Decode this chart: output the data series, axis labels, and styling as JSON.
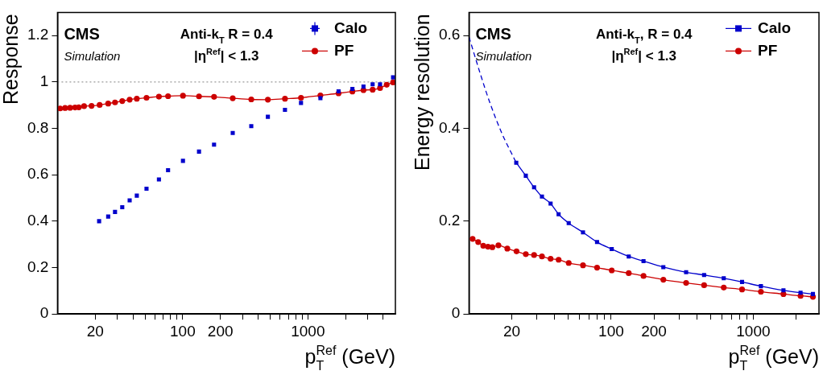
{
  "chart_data": [
    {
      "type": "scatter",
      "ylabel": "Response",
      "xlabel": "p$_{T}$$^{Ref}$ (GeV)",
      "log": "x",
      "grid": false,
      "legend": "top right",
      "xlim": [
        10,
        5000
      ],
      "xticks": [
        20,
        {
          "value": 30,
          "label": null
        },
        {
          "value": 40,
          "label": null
        },
        {
          "value": 50,
          "label": null
        },
        {
          "value": 60,
          "label": null
        },
        {
          "value": 70,
          "label": null
        },
        {
          "value": 80,
          "label": null
        },
        {
          "value": 90,
          "label": null
        },
        100,
        200,
        {
          "value": 300,
          "label": null
        },
        {
          "value": 400,
          "label": null
        },
        {
          "value": 500,
          "label": null
        },
        {
          "value": 600,
          "label": null
        },
        {
          "value": 700,
          "label": null
        },
        {
          "value": 800,
          "label": null
        },
        {
          "value": 900,
          "label": null
        },
        1000,
        {
          "value": 2000,
          "label": null
        },
        {
          "value": 3000,
          "label": null
        },
        {
          "value": 4000,
          "label": null
        }
      ],
      "ylim": [
        0,
        1.3
      ],
      "yticks": [
        0,
        0.2,
        0.4,
        0.6,
        0.8,
        1,
        1.2
      ],
      "annotations": [
        "CMS",
        "Simulation",
        "Anti-k$_{T}$ R = 0.4",
        "|η$^{Ref}$| < 1.3"
      ],
      "ref_lines": [
        {
          "axis": "y",
          "value": 1,
          "color": "#808080",
          "line_style": "dotted"
        }
      ],
      "series": [
        {
          "name": "Calo",
          "marker": "square",
          "color": "#0000cc",
          "x": [
            21.5,
            25.4,
            28.8,
            32.9,
            37.7,
            43,
            51.4,
            64.6,
            76.4,
            100.5,
            135,
            178,
            251,
            353,
            479,
            656,
            881,
            1259,
            1758,
            2268,
            2780,
            3290,
            3770,
            4790
          ],
          "values": [
            0.4,
            0.42,
            0.44,
            0.46,
            0.49,
            0.51,
            0.54,
            0.58,
            0.62,
            0.66,
            0.7,
            0.73,
            0.78,
            0.81,
            0.85,
            0.88,
            0.91,
            0.93,
            0.96,
            0.97,
            0.98,
            0.99,
            0.99,
            1.02
          ]
        },
        {
          "name": "PF",
          "type": "line",
          "marker": "circle",
          "color": "#cc0000",
          "x": [
            10.5,
            11.5,
            12.6,
            13.8,
            14.8,
            16.3,
            18.7,
            21.7,
            25.4,
            28.8,
            32.9,
            37.7,
            43,
            51.4,
            64.6,
            76.4,
            100.5,
            135,
            178,
            251,
            353,
            479,
            656,
            881,
            1259,
            1758,
            2268,
            2780,
            3290,
            3770,
            4260,
            4790
          ],
          "values": [
            0.886,
            0.888,
            0.889,
            0.89,
            0.891,
            0.896,
            0.897,
            0.901,
            0.907,
            0.912,
            0.918,
            0.924,
            0.928,
            0.932,
            0.937,
            0.939,
            0.941,
            0.938,
            0.936,
            0.93,
            0.925,
            0.924,
            0.928,
            0.932,
            0.942,
            0.951,
            0.959,
            0.965,
            0.967,
            0.974,
            0.988,
            0.998
          ]
        }
      ]
    },
    {
      "type": "line",
      "ylabel": "Energy resolution",
      "xlabel": "p$_{T}$$^{Ref}$ (GeV)",
      "log": "x",
      "grid": false,
      "legend": "top right",
      "xlim": [
        10,
        2900
      ],
      "xticks": [
        20,
        {
          "value": 30,
          "label": null
        },
        {
          "value": 40,
          "label": null
        },
        {
          "value": 50,
          "label": null
        },
        {
          "value": 60,
          "label": null
        },
        {
          "value": 70,
          "label": null
        },
        {
          "value": 80,
          "label": null
        },
        {
          "value": 90,
          "label": null
        },
        100,
        200,
        {
          "value": 300,
          "label": null
        },
        {
          "value": 400,
          "label": null
        },
        {
          "value": 500,
          "label": null
        },
        {
          "value": 600,
          "label": null
        },
        {
          "value": 700,
          "label": null
        },
        {
          "value": 800,
          "label": null
        },
        {
          "value": 900,
          "label": null
        },
        1000,
        {
          "value": 2000,
          "label": null
        }
      ],
      "ylim": [
        0,
        0.65
      ],
      "yticks": [
        0,
        0.2,
        0.4,
        0.6
      ],
      "annotations": [
        "CMS",
        "Simulation",
        "Anti-k$_{T}$, R = 0.4",
        "|η$^{Ref}$| < 1.3"
      ],
      "series": [
        {
          "name": "Calo",
          "marker": "square",
          "color": "#0000cc",
          "x": [
            21.5,
            25.1,
            28.7,
            32.6,
            37.5,
            42.7,
            50.3,
            63.4,
            79.6,
            101,
            133,
            169,
            233,
            337,
            451,
            620,
            834,
            1132,
            1631,
            2152,
            2630
          ],
          "values": [
            0.326,
            0.298,
            0.273,
            0.253,
            0.238,
            0.215,
            0.196,
            0.176,
            0.155,
            0.14,
            0.124,
            0.114,
            0.101,
            0.09,
            0.084,
            0.077,
            0.069,
            0.06,
            0.051,
            0.046,
            0.043
          ]
        },
        {
          "marker": "none",
          "line_style": "dashed",
          "color": "#0000cc",
          "x": [
            10,
            12,
            14,
            17,
            21.5
          ],
          "values": [
            0.597,
            0.518,
            0.456,
            0.39,
            0.326
          ]
        },
        {
          "name": "PF",
          "marker": "circle",
          "color": "#cc0000",
          "x": [
            10.6,
            11.6,
            12.6,
            13.6,
            14.6,
            16.1,
            18.6,
            21.6,
            25.1,
            28.7,
            32.6,
            37.5,
            42.7,
            50.3,
            63.4,
            79.6,
            101,
            133,
            169,
            233,
            337,
            451,
            620,
            834,
            1132,
            1631,
            2152,
            2630
          ],
          "values": [
            0.162,
            0.155,
            0.147,
            0.145,
            0.144,
            0.148,
            0.141,
            0.135,
            0.129,
            0.127,
            0.124,
            0.119,
            0.117,
            0.11,
            0.105,
            0.1,
            0.094,
            0.088,
            0.082,
            0.074,
            0.067,
            0.062,
            0.057,
            0.053,
            0.048,
            0.043,
            0.039,
            0.037
          ]
        }
      ]
    }
  ]
}
